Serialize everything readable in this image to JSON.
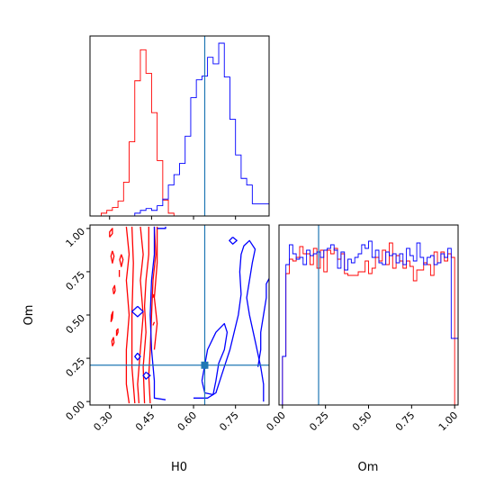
{
  "chart_data": {
    "type": "corner",
    "parameters": [
      "H0",
      "Om"
    ],
    "truth": {
      "H0": 0.64,
      "Om": 0.21
    },
    "colors": {
      "red": "#ff0000",
      "blue": "#0000ff",
      "truth": "#1f77b4"
    },
    "ticks": {
      "H0": {
        "labels": [
          "0.30",
          "0.45",
          "0.60",
          "0.75"
        ],
        "values": [
          0.3,
          0.45,
          0.6,
          0.75
        ]
      },
      "Om": {
        "labels": [
          "0.00",
          "0.25",
          "0.50",
          "0.75",
          "1.00"
        ],
        "values": [
          0.0,
          0.25,
          0.5,
          0.75,
          1.0
        ]
      }
    },
    "ranges": {
      "H0": [
        0.23,
        0.87
      ],
      "Om": [
        -0.02,
        1.02
      ]
    },
    "histograms": {
      "H0": {
        "bin_start": 0.23,
        "bin_width": 0.02,
        "red": [
          0,
          0,
          3,
          6,
          9,
          16,
          36,
          79,
          144,
          177,
          152,
          110,
          59,
          17,
          3,
          0,
          0,
          0,
          0,
          0,
          0,
          0,
          0,
          0,
          0,
          0,
          0,
          0,
          0,
          0,
          0,
          0
        ],
        "blue": [
          0,
          0,
          0,
          0,
          0,
          0,
          0,
          0,
          3,
          6,
          8,
          6,
          11,
          18,
          33,
          44,
          56,
          85,
          126,
          145,
          149,
          169,
          162,
          184,
          148,
          103,
          65,
          40,
          33,
          13,
          13,
          13
        ]
      },
      "Om": {
        "bin_start": 0.0,
        "bin_width": 0.02,
        "red": [
          27,
          73,
          81,
          80,
          82,
          88,
          84,
          84,
          78,
          87,
          76,
          86,
          74,
          86,
          84,
          87,
          81,
          84,
          73,
          72,
          72,
          72,
          74,
          74,
          80,
          73,
          76,
          82,
          80,
          86,
          78,
          90,
          76,
          83,
          80,
          76,
          80,
          77,
          69,
          75,
          75,
          79,
          78,
          72,
          85,
          79,
          85,
          80,
          84,
          82,
          0
        ],
        "blue": [
          27,
          78,
          89,
          84,
          81,
          82,
          78,
          86,
          83,
          84,
          85,
          82,
          86,
          87,
          89,
          86,
          76,
          85,
          75,
          81,
          79,
          82,
          84,
          89,
          87,
          91,
          82,
          86,
          79,
          78,
          85,
          83,
          84,
          79,
          84,
          78,
          87,
          83,
          80,
          90,
          82,
          78,
          82,
          83,
          78,
          79,
          84,
          82,
          87,
          37,
          37
        ]
      }
    },
    "contours": {
      "red": [
        [
          [
            0.36,
            1.01
          ],
          [
            0.37,
            0.85
          ],
          [
            0.36,
            0.7
          ],
          [
            0.37,
            0.5
          ],
          [
            0.36,
            0.3
          ],
          [
            0.36,
            0.1
          ],
          [
            0.37,
            -0.01
          ]
        ],
        [
          [
            0.38,
            1.01
          ],
          [
            0.385,
            0.8
          ],
          [
            0.38,
            0.5
          ],
          [
            0.38,
            0.2
          ],
          [
            0.39,
            -0.01
          ]
        ],
        [
          [
            0.41,
            1.01
          ],
          [
            0.42,
            0.85
          ],
          [
            0.41,
            0.7
          ],
          [
            0.42,
            0.5
          ],
          [
            0.41,
            0.3
          ],
          [
            0.4,
            0.1
          ],
          [
            0.405,
            -0.01
          ]
        ],
        [
          [
            0.44,
            1.01
          ],
          [
            0.44,
            0.85
          ],
          [
            0.43,
            0.7
          ],
          [
            0.425,
            0.55
          ],
          [
            0.43,
            0.4
          ],
          [
            0.42,
            0.2
          ],
          [
            0.425,
            -0.01
          ]
        ],
        [
          [
            0.46,
            1.01
          ],
          [
            0.465,
            0.85
          ],
          [
            0.455,
            0.7
          ],
          [
            0.45,
            0.5
          ],
          [
            0.445,
            0.3
          ],
          [
            0.44,
            0.15
          ],
          [
            0.445,
            -0.01
          ]
        ],
        [
          [
            0.47,
            1.01
          ],
          [
            0.47,
            0.8
          ],
          [
            0.46,
            0.6
          ],
          [
            0.47,
            0.45
          ],
          [
            0.46,
            0.3
          ]
        ],
        [
          [
            0.3,
            0.95
          ],
          [
            0.31,
            0.97
          ],
          [
            0.31,
            1.0
          ],
          [
            0.3,
            0.98
          ],
          [
            0.3,
            0.95
          ]
        ],
        [
          [
            0.305,
            0.46
          ],
          [
            0.31,
            0.48
          ],
          [
            0.312,
            0.52
          ],
          [
            0.307,
            0.5
          ],
          [
            0.305,
            0.46
          ]
        ],
        [
          [
            0.31,
            0.87
          ],
          [
            0.316,
            0.84
          ],
          [
            0.31,
            0.8
          ],
          [
            0.305,
            0.84
          ],
          [
            0.31,
            0.87
          ]
        ],
        [
          [
            0.315,
            0.62
          ],
          [
            0.32,
            0.64
          ],
          [
            0.318,
            0.67
          ],
          [
            0.312,
            0.65
          ],
          [
            0.315,
            0.62
          ]
        ],
        [
          [
            0.31,
            0.32
          ],
          [
            0.316,
            0.34
          ],
          [
            0.314,
            0.37
          ],
          [
            0.308,
            0.35
          ],
          [
            0.31,
            0.32
          ]
        ],
        [
          [
            0.325,
            0.38
          ],
          [
            0.33,
            0.4
          ],
          [
            0.33,
            0.42
          ],
          [
            0.325,
            0.41
          ],
          [
            0.325,
            0.38
          ]
        ],
        [
          [
            0.342,
            0.85
          ],
          [
            0.348,
            0.82
          ],
          [
            0.342,
            0.78
          ],
          [
            0.336,
            0.82
          ],
          [
            0.342,
            0.85
          ]
        ],
        [
          [
            0.335,
            0.72
          ],
          [
            0.335,
            0.76
          ]
        ],
        [
          [
            0.455,
            0.6
          ],
          [
            0.458,
            0.62
          ]
        ],
        [
          [
            0.455,
            0.44
          ],
          [
            0.46,
            0.46
          ]
        ]
      ],
      "blue": [
        [
          [
            0.46,
            1.01
          ],
          [
            0.46,
            0.85
          ],
          [
            0.45,
            0.7
          ],
          [
            0.445,
            0.5
          ],
          [
            0.45,
            0.3
          ],
          [
            0.46,
            0.12
          ],
          [
            0.46,
            0.02
          ],
          [
            0.5,
            0.01
          ]
        ],
        [
          [
            0.47,
            1.0
          ],
          [
            0.5,
            1.0
          ],
          [
            0.5,
            1.01
          ]
        ],
        [
          [
            0.4,
            0.55
          ],
          [
            0.42,
            0.52
          ],
          [
            0.4,
            0.49
          ],
          [
            0.38,
            0.52
          ],
          [
            0.4,
            0.55
          ]
        ],
        [
          [
            0.4,
            0.28
          ],
          [
            0.41,
            0.26
          ],
          [
            0.4,
            0.24
          ],
          [
            0.39,
            0.26
          ],
          [
            0.4,
            0.28
          ]
        ],
        [
          [
            0.43,
            0.17
          ],
          [
            0.445,
            0.15
          ],
          [
            0.43,
            0.13
          ],
          [
            0.42,
            0.15
          ],
          [
            0.43,
            0.17
          ]
        ],
        [
          [
            0.6,
            0.02
          ],
          [
            0.65,
            0.02
          ],
          [
            0.68,
            0.05
          ],
          [
            0.7,
            0.15
          ],
          [
            0.73,
            0.3
          ],
          [
            0.76,
            0.5
          ],
          [
            0.77,
            0.62
          ],
          [
            0.765,
            0.75
          ],
          [
            0.77,
            0.85
          ],
          [
            0.78,
            0.9
          ],
          [
            0.8,
            0.93
          ],
          [
            0.82,
            0.88
          ],
          [
            0.81,
            0.8
          ],
          [
            0.8,
            0.7
          ],
          [
            0.79,
            0.6
          ],
          [
            0.8,
            0.5
          ],
          [
            0.82,
            0.35
          ],
          [
            0.84,
            0.2
          ],
          [
            0.85,
            0.1
          ],
          [
            0.85,
            0.0
          ]
        ],
        [
          [
            0.63,
            0.12
          ],
          [
            0.64,
            0.05
          ],
          [
            0.67,
            0.04
          ],
          [
            0.68,
            0.12
          ],
          [
            0.69,
            0.22
          ],
          [
            0.71,
            0.3
          ],
          [
            0.72,
            0.4
          ],
          [
            0.71,
            0.45
          ],
          [
            0.68,
            0.4
          ],
          [
            0.65,
            0.3
          ],
          [
            0.63,
            0.12
          ]
        ],
        [
          [
            0.74,
            0.95
          ],
          [
            0.755,
            0.93
          ],
          [
            0.74,
            0.91
          ],
          [
            0.728,
            0.93
          ],
          [
            0.74,
            0.95
          ]
        ],
        [
          [
            0.87,
            0.71
          ],
          [
            0.86,
            0.68
          ],
          [
            0.86,
            0.6
          ],
          [
            0.85,
            0.5
          ],
          [
            0.84,
            0.4
          ],
          [
            0.84,
            0.3
          ],
          [
            0.83,
            0.2
          ]
        ],
        [
          [
            0.63,
            0.2
          ],
          [
            0.645,
            0.22
          ],
          [
            0.65,
            0.2
          ],
          [
            0.64,
            0.19
          ],
          [
            0.63,
            0.2
          ]
        ]
      ]
    }
  }
}
